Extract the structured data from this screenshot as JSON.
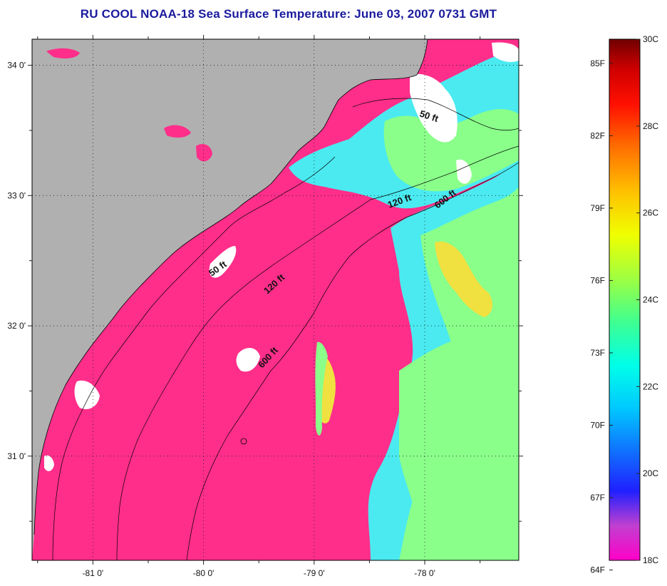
{
  "title": "RU COOL  NOAA-18  Sea Surface Temperature:  June 03, 2007 0731 GMT",
  "map": {
    "lat_range": [
      30.2,
      34.2
    ],
    "lon_range": [
      -81.55,
      -77.15
    ],
    "lat_ticks": [
      {
        "value": 34,
        "label": "34 0'"
      },
      {
        "value": 33,
        "label": "33 0'"
      },
      {
        "value": 32,
        "label": "32 0'"
      },
      {
        "value": 31,
        "label": "31 0'"
      }
    ],
    "lon_ticks": [
      {
        "value": -81,
        "label": "-81 0'"
      },
      {
        "value": -80,
        "label": "-80 0'"
      },
      {
        "value": -79,
        "label": "-79 0'"
      },
      {
        "value": -78,
        "label": "-78 0'"
      }
    ],
    "grid": true,
    "colors": {
      "land": "#b0b0b0",
      "no_data": "#ffffff",
      "sst_18c": "#ff2e8a",
      "warm_green": "#8aff8a",
      "cyan": "#4aeaf0",
      "yellow": "#f0e040"
    },
    "isobath_labels": [
      {
        "text": "50 ft"
      },
      {
        "text": "120 ft"
      },
      {
        "text": "600 ft"
      },
      {
        "text": "50 ft"
      },
      {
        "text": "120 ft"
      },
      {
        "text": "600 ft"
      }
    ]
  },
  "colorbar": {
    "range_c": [
      18,
      30
    ],
    "celsius_ticks": [
      {
        "value": 30,
        "label": "30C"
      },
      {
        "value": 28,
        "label": "28C"
      },
      {
        "value": 26,
        "label": "26C"
      },
      {
        "value": 24,
        "label": "24C"
      },
      {
        "value": 22,
        "label": "22C"
      },
      {
        "value": 20,
        "label": "20C"
      },
      {
        "value": 18,
        "label": "18C"
      }
    ],
    "fahrenheit_ticks": [
      {
        "value": 85,
        "label": "85F"
      },
      {
        "value": 82,
        "label": "82F"
      },
      {
        "value": 79,
        "label": "79F"
      },
      {
        "value": 76,
        "label": "76F"
      },
      {
        "value": 73,
        "label": "73F"
      },
      {
        "value": 70,
        "label": "70F"
      },
      {
        "value": 67,
        "label": "67F"
      },
      {
        "value": 64,
        "label": "64F"
      }
    ],
    "stops": [
      {
        "c": 18.0,
        "color": "#ff00c8"
      },
      {
        "c": 18.8,
        "color": "#c040d0"
      },
      {
        "c": 19.6,
        "color": "#2020ff"
      },
      {
        "c": 20.5,
        "color": "#1070ff"
      },
      {
        "c": 21.5,
        "color": "#00c8ff"
      },
      {
        "c": 22.5,
        "color": "#00ffe8"
      },
      {
        "c": 23.5,
        "color": "#40ff90"
      },
      {
        "c": 24.5,
        "color": "#a0ff40"
      },
      {
        "c": 25.5,
        "color": "#f0ff00"
      },
      {
        "c": 26.5,
        "color": "#ffc000"
      },
      {
        "c": 27.5,
        "color": "#ff7000"
      },
      {
        "c": 28.5,
        "color": "#ff1000"
      },
      {
        "c": 29.3,
        "color": "#d00000"
      },
      {
        "c": 30.0,
        "color": "#700000"
      }
    ]
  }
}
